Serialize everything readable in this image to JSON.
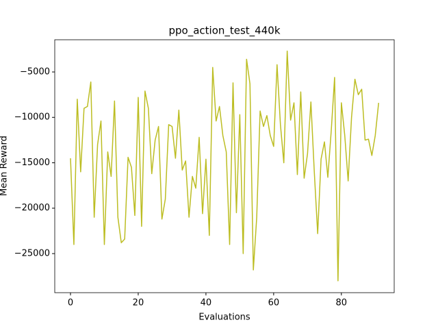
{
  "chart_data": {
    "type": "line",
    "title": "ppo_action_test_440k",
    "x_label": "Evaluations",
    "y_label": "Mean Reward",
    "x": [
      0,
      1,
      2,
      3,
      4,
      5,
      6,
      7,
      8,
      9,
      10,
      11,
      12,
      13,
      14,
      15,
      16,
      17,
      18,
      19,
      20,
      21,
      22,
      23,
      24,
      25,
      26,
      27,
      28,
      29,
      30,
      31,
      32,
      33,
      34,
      35,
      36,
      37,
      38,
      39,
      40,
      41,
      42,
      43,
      44,
      45,
      46,
      47,
      48,
      49,
      50,
      51,
      52,
      53,
      54,
      55,
      56,
      57,
      58,
      59,
      60,
      61,
      62,
      63,
      64,
      65,
      66,
      67,
      68,
      69,
      70,
      71,
      72,
      73,
      74,
      75,
      76,
      77,
      78,
      79,
      80,
      81,
      82,
      83,
      84,
      85,
      86,
      87,
      88,
      89,
      90,
      91
    ],
    "series": [
      {
        "color": "#bcbd22",
        "values": [
          -14500,
          -24000,
          -8000,
          -16000,
          -9000,
          -8800,
          -6100,
          -21000,
          -13000,
          -10400,
          -24000,
          -13800,
          -16500,
          -8200,
          -21000,
          -23800,
          -23400,
          -14400,
          -15500,
          -20800,
          -7800,
          -22000,
          -7100,
          -9000,
          -16200,
          -12500,
          -11000,
          -21200,
          -19000,
          -10800,
          -11000,
          -14500,
          -9200,
          -15800,
          -14800,
          -21000,
          -16500,
          -17800,
          -12200,
          -20600,
          -14600,
          -23000,
          -4500,
          -10400,
          -8800,
          -12000,
          -13800,
          -24000,
          -6200,
          -20500,
          -9700,
          -25000,
          -3600,
          -6300,
          -26800,
          -21000,
          -9300,
          -11000,
          -9800,
          -12000,
          -13200,
          -4200,
          -10800,
          -15000,
          -2700,
          -10300,
          -8400,
          -16300,
          -7200,
          -16700,
          -14000,
          -8300,
          -16000,
          -22800,
          -14600,
          -12700,
          -16600,
          -11500,
          -5600,
          -28000,
          -8400,
          -12000,
          -17000,
          -10000,
          -5800,
          -7500,
          -6900,
          -12500,
          -12400,
          -14200,
          -12000,
          -8400
        ]
      }
    ],
    "xlim": [
      -4.65,
      95.6
    ],
    "xticks": [
      0,
      20,
      40,
      60,
      80
    ],
    "ylim": [
      -29302,
      -1453
    ],
    "yticks": [
      {
        "value": -25000,
        "label": "−25000"
      },
      {
        "value": -20000,
        "label": "−20000"
      },
      {
        "value": -15000,
        "label": "−15000"
      },
      {
        "value": -10000,
        "label": "−10000"
      },
      {
        "value": -5000,
        "label": "−5000"
      }
    ]
  }
}
